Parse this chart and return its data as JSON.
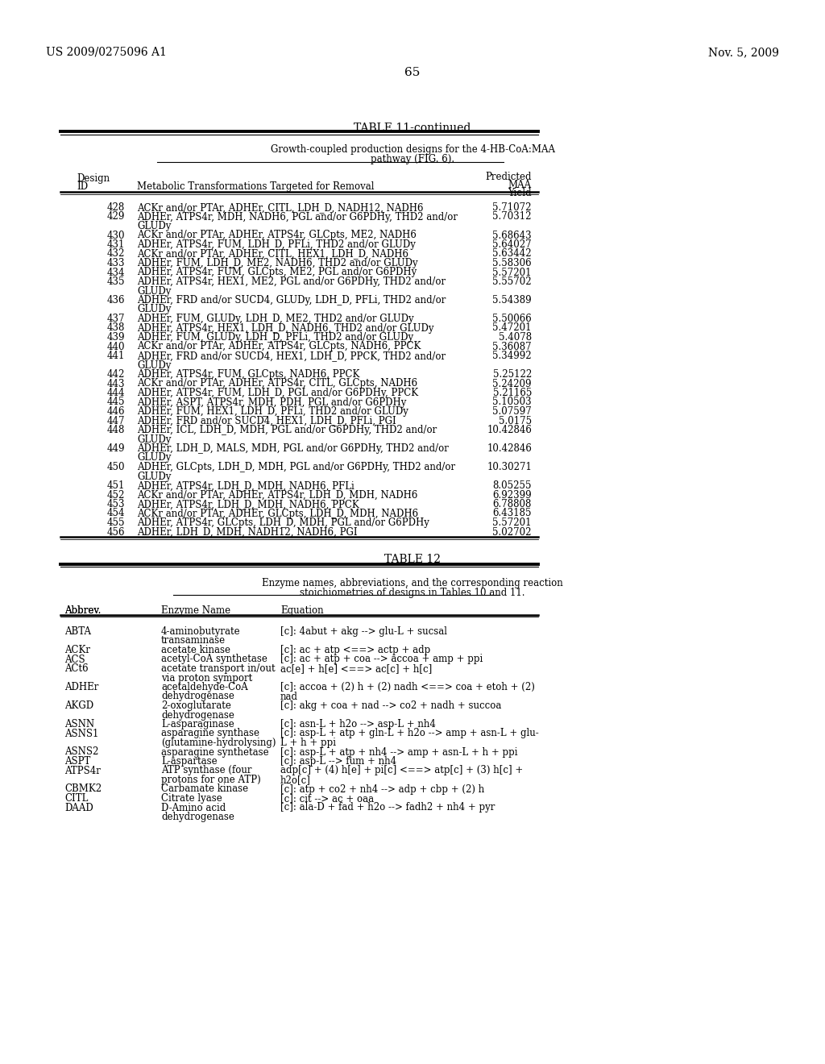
{
  "header_left": "US 2009/0275096 A1",
  "header_right": "Nov. 5, 2009",
  "page_number": "65",
  "table11_title": "TABLE 11-continued",
  "table11_subtitle1": "Growth-coupled production designs for the 4-HB-CoA:MAA",
  "table11_subtitle2": "pathway (FIG. 6).",
  "table11_rows": [
    [
      "428",
      "ACKr and/or PTAr, ADHEr, CITL, LDH_D, NADH12, NADH6",
      "5.71072",
      1
    ],
    [
      "429",
      "ADHEr, ATPS4r, MDH, NADH6, PGL and/or G6PDHy, THD2 and/or",
      "5.70312",
      2
    ],
    [
      "",
      "GLUDy",
      "",
      0
    ],
    [
      "430",
      "ACKr and/or PTAr, ADHEr, ATPS4r, GLCpts, ME2, NADH6",
      "5.68643",
      1
    ],
    [
      "431",
      "ADHEr, ATPS4r, FUM, LDH_D, PFLi, THD2 and/or GLUDy",
      "5.64027",
      1
    ],
    [
      "432",
      "ACKr and/or PTAr, ADHEr, CITL, HEX1, LDH_D, NADH6",
      "5.63442",
      1
    ],
    [
      "433",
      "ADHEr, FUM, LDH_D, ME2, NADH6, THD2 and/or GLUDy",
      "5.58306",
      1
    ],
    [
      "434",
      "ADHEr, ATPS4r, FUM, GLCpts, ME2, PGL and/or G6PDHy",
      "5.57201",
      1
    ],
    [
      "435",
      "ADHEr, ATPS4r, HEX1, ME2, PGL and/or G6PDHy, THD2 and/or",
      "5.55702",
      2
    ],
    [
      "",
      "GLUDy",
      "",
      0
    ],
    [
      "436",
      "ADHEr, FRD and/or SUCD4, GLUDy, LDH_D, PFLi, THD2 and/or",
      "5.54389",
      2
    ],
    [
      "",
      "GLUDy",
      "",
      0
    ],
    [
      "437",
      "ADHEr, FUM, GLUDy, LDH_D, ME2, THD2 and/or GLUDy",
      "5.50066",
      1
    ],
    [
      "438",
      "ADHEr, ATPS4r, HEX1, LDH_D, NADH6, THD2 and/or GLUDy",
      "5.47201",
      1
    ],
    [
      "439",
      "ADHEr, FUM, GLUDy, LDH_D, PFLi, THD2 and/or GLUDy",
      "5.4078",
      1
    ],
    [
      "440",
      "ACKr and/or PTAr, ADHEr, ATPS4r, GLCpts, NADH6, PPCK",
      "5.36087",
      1
    ],
    [
      "441",
      "ADHEr, FRD and/or SUCD4, HEX1, LDH_D, PPCK, THD2 and/or",
      "5.34992",
      2
    ],
    [
      "",
      "GLUDy",
      "",
      0
    ],
    [
      "442",
      "ADHEr, ATPS4r, FUM, GLCpts, NADH6, PPCK",
      "5.25122",
      1
    ],
    [
      "443",
      "ACKr and/or PTAr, ADHEr, ATPS4r, CITL, GLCpts, NADH6",
      "5.24209",
      1
    ],
    [
      "444",
      "ADHEr, ATPS4r, FUM, LDH_D, PGL and/or G6PDHy, PPCK",
      "5.21165",
      1
    ],
    [
      "445",
      "ADHEr, ASPT, ATPS4r, MDH, PDH, PGL and/or G6PDHy",
      "5.10503",
      1
    ],
    [
      "446",
      "ADHEr, FUM, HEX1, LDH_D, PFLi, THD2 and/or GLUDy",
      "5.07597",
      1
    ],
    [
      "447",
      "ADHEr, FRD and/or SUCD4, HEX1, LDH_D, PFLi, PGI",
      "5.0175",
      1
    ],
    [
      "448",
      "ADHEr, ICL, LDH_D, MDH, PGL and/or G6PDHy, THD2 and/or",
      "10.42846",
      2
    ],
    [
      "",
      "GLUDy",
      "",
      0
    ],
    [
      "449",
      "ADHEr, LDH_D, MALS, MDH, PGL and/or G6PDHy, THD2 and/or",
      "10.42846",
      2
    ],
    [
      "",
      "GLUDy",
      "",
      0
    ],
    [
      "450",
      "ADHEr, GLCpts, LDH_D, MDH, PGL and/or G6PDHy, THD2 and/or",
      "10.30271",
      2
    ],
    [
      "",
      "GLUDy",
      "",
      0
    ],
    [
      "451",
      "ADHEr, ATPS4r, LDH_D, MDH, NADH6, PFLi",
      "8.05255",
      1
    ],
    [
      "452",
      "ACKr and/or PTAr, ADHEr, ATPS4r, LDH_D, MDH, NADH6",
      "6.92399",
      1
    ],
    [
      "453",
      "ADHEr, ATPS4r, LDH_D, MDH, NADH6, PPCK",
      "6.78808",
      1
    ],
    [
      "454",
      "ACKr and/or PTAr, ADHEr, GLCpts, LDH_D, MDH, NADH6",
      "6.43185",
      1
    ],
    [
      "455",
      "ADHEr, ATPS4r, GLCpts, LDH_D, MDH, PGL and/or G6PDHy",
      "5.57201",
      1
    ],
    [
      "456",
      "ADHEr, LDH_D, MDH, NADH12, NADH6, PGI",
      "5.02702",
      1
    ]
  ],
  "table12_title": "TABLE 12",
  "table12_subtitle1": "Enzyme names, abbreviations, and the corresponding reaction",
  "table12_subtitle2": "stoichiometries of designs in Tables 10 and 11.",
  "table12_rows": [
    [
      "ABTA",
      "4-aminobutyrate",
      "[c]: 4abut + akg --> glu-L + sucsal",
      2,
      1
    ],
    [
      "",
      "transaminase",
      "",
      0,
      0
    ],
    [
      "ACKr",
      "acetate kinase",
      "[c]: ac + atp <==> actp + adp",
      1,
      1
    ],
    [
      "ACS",
      "acetyl-CoA synthetase",
      "[c]: ac + atp + coa --> accoa + amp + ppi",
      1,
      1
    ],
    [
      "ACt6",
      "acetate transport in/out",
      "ac[e] + h[e] <==> ac[c] + h[c]",
      2,
      1
    ],
    [
      "",
      "via proton symport",
      "",
      0,
      0
    ],
    [
      "ADHEr",
      "acetaldehyde-CoA",
      "[c]: accoa + (2) h + (2) nadh <==> coa + etoh + (2)",
      2,
      2
    ],
    [
      "",
      "dehydrogenase",
      "nad",
      0,
      0
    ],
    [
      "AKGD",
      "2-oxoglutarate",
      "[c]: akg + coa + nad --> co2 + nadh + succoa",
      2,
      1
    ],
    [
      "",
      "dehydrogenase",
      "",
      0,
      0
    ],
    [
      "ASNN",
      "L-asparaginase",
      "[c]: asn-L + h2o --> asp-L + nh4",
      1,
      1
    ],
    [
      "ASNS1",
      "asparagine synthase",
      "[c]: asp-L + atp + gln-L + h2o --> amp + asn-L + glu-",
      2,
      2
    ],
    [
      "",
      "(glutamine-hydrolysing)",
      "L + h + ppi",
      0,
      0
    ],
    [
      "ASNS2",
      "asparagine synthetase",
      "[c]: asp-L + atp + nh4 --> amp + asn-L + h + ppi",
      1,
      1
    ],
    [
      "ASPT",
      "L-aspartase",
      "[c]: asp-L --> fum + nh4",
      1,
      1
    ],
    [
      "ATPS4r",
      "ATP synthase (four",
      "adp[c] + (4) h[e] + pi[c] <==> atp[c] + (3) h[c] +",
      2,
      2
    ],
    [
      "",
      "protons for one ATP)",
      "h2o[c]",
      0,
      0
    ],
    [
      "CBMK2",
      "Carbamate kinase",
      "[c]: atp + co2 + nh4 --> adp + cbp + (2) h",
      1,
      1
    ],
    [
      "CITL",
      "Citrate lyase",
      "[c]: cit --> ac + oaa",
      1,
      1
    ],
    [
      "DAAD",
      "D-Amino acid",
      "[c]: ala-D + fad + h2o --> fadh2 + nh4 + pyr",
      2,
      1
    ],
    [
      "",
      "dehydrogenase",
      "",
      0,
      0
    ]
  ]
}
